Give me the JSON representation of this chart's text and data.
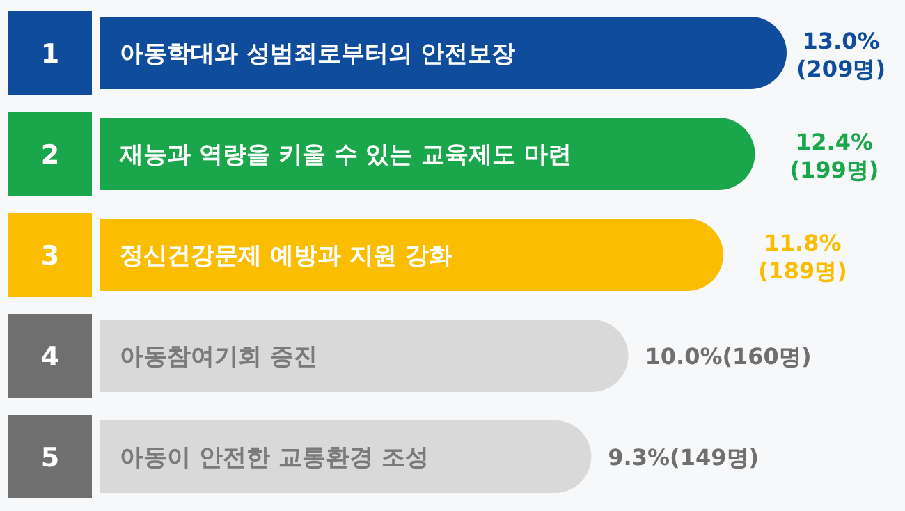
{
  "chart_data": {
    "type": "bar",
    "orientation": "horizontal",
    "categories": [
      "아동학대와 성범죄로부터의 안전보장",
      "재능과 역량을 키울 수 있는 교육제도 마련",
      "정신건강문제 예방과 지원 강화",
      "아동참여기회 증진",
      "아동이 안전한 교통환경 조성"
    ],
    "values": [
      13.0,
      12.4,
      11.8,
      10.0,
      9.3
    ],
    "colors": [
      "#0f4c9c",
      "#1aa64b",
      "#fbbd00",
      "#d9d9d9",
      "#d9d9d9"
    ],
    "value_labels": [
      "13.0%(209명)",
      "12.4%(199명)",
      "11.8%(189명)",
      "10.0%(160명)",
      "9.3%(149명)"
    ],
    "annotations": [
      "1",
      "2",
      "3",
      "4",
      "5"
    ]
  }
}
